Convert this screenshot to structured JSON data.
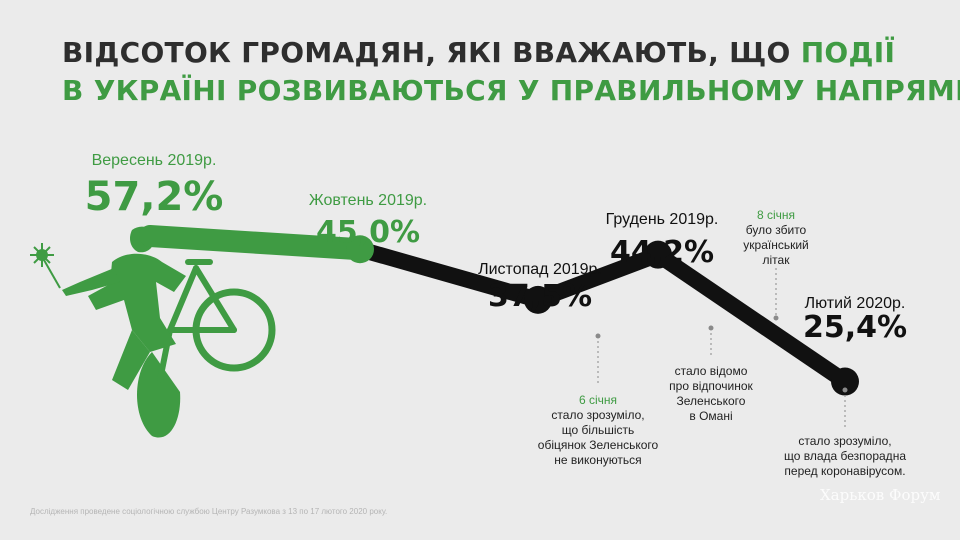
{
  "title": {
    "line1_dark": "ВІДСОТОК ГРОМАДЯН, ЯКІ ВВАЖАЮТЬ, ЩО ",
    "line1_green": "ПОДІЇ",
    "line2_green": "В УКРАЇНІ РОЗВИВАЮТЬСЯ У ПРАВИЛЬНОМУ НАПРЯМКУ"
  },
  "chart_data": {
    "type": "line",
    "title": "ВІДСОТОК ГРОМАДЯН, ЯКІ ВВАЖАЮТЬ, ЩО ПОДІЇ В УКРАЇНІ РОЗВИВАЮТЬСЯ У ПРАВИЛЬНОМУ НАПРЯМКУ",
    "categories": [
      "Вересень 2019р.",
      "Жовтень 2019р.",
      "Листопад 2019р.",
      "Грудень 2019р.",
      "Лютий 2020р."
    ],
    "values": [
      57.2,
      45.0,
      37.5,
      44.2,
      25.4
    ],
    "value_labels": [
      "57,2%",
      "45,0%",
      "37,5%",
      "44,2%",
      "25,4%"
    ],
    "segment_colors": [
      "#3f9b43",
      "#3f9b43",
      "#111111",
      "#111111",
      "#111111"
    ],
    "annotations": [
      {
        "id": "a1",
        "lines": [
          "6 січня",
          "стало зрозуміло,",
          "що більшість",
          "обіцянок Зеленського",
          "не виконуються"
        ],
        "green_first_line": true
      },
      {
        "id": "a2",
        "lines": [
          "стало відомо",
          "про відпочинок",
          "Зеленського",
          "в Омані"
        ],
        "green_first_line": false
      },
      {
        "id": "a3",
        "lines": [
          "8 січня",
          "було збито",
          "український",
          "літак"
        ],
        "green_first_line": true
      },
      {
        "id": "a4",
        "lines": [
          "стало зрозуміло,",
          "що влада безпорадна",
          "перед коронавірусом."
        ],
        "green_first_line": false
      }
    ]
  },
  "colors": {
    "green": "#3f9b43",
    "dark": "#111111",
    "title_dark": "#2e2e2e",
    "background": "#ebebeb"
  },
  "illustration": {
    "icons": [
      "cyclist-icon",
      "coronavirus-icon"
    ]
  },
  "footnote": "Дослідження проведене соціологічною службою Центру Разумкова з 13 по 17 лютого 2020 року.",
  "watermark": "Харьков Форум"
}
